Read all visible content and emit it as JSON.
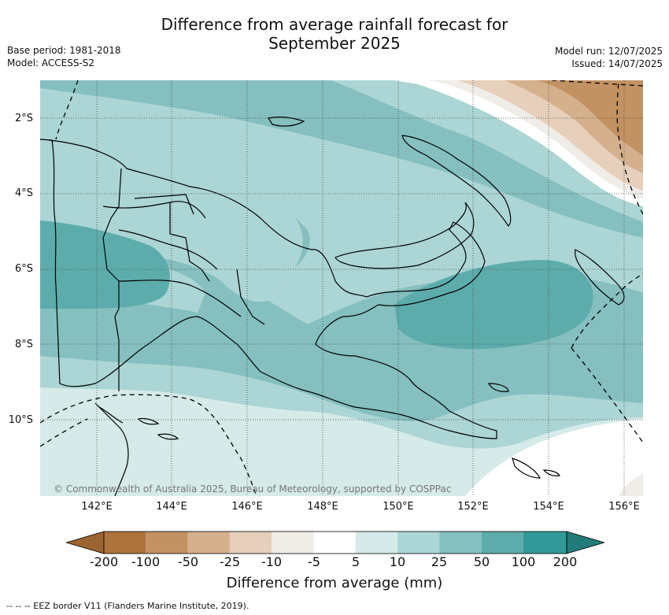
{
  "title_line1": "Difference from average rainfall forecast for",
  "title_line2": "September 2025",
  "meta": {
    "base_period": "Base period: 1981-2018",
    "model": "Model: ACCESS-S2",
    "model_run": "Model run: 12/07/2025",
    "issued": "Issued: 14/07/2025"
  },
  "map": {
    "lat_labels": [
      "2°S",
      "4°S",
      "6°S",
      "8°S",
      "10°S"
    ],
    "lon_labels": [
      "142°E",
      "144°E",
      "146°E",
      "148°E",
      "150°E",
      "152°E",
      "154°E",
      "156°E"
    ],
    "copyright": "© Commonwealth of Australia 2025, Bureau of Meteorology, supported by COSPPac",
    "border_color": "#000000",
    "eez_style": "dashed"
  },
  "colorbar": {
    "label": "Difference from average (mm)",
    "ticks": [
      "-200",
      "-100",
      "-50",
      "-25",
      "-10",
      "-5",
      "5",
      "10",
      "25",
      "50",
      "100",
      "200"
    ],
    "colors": {
      "under": "#9c6431",
      "b1": "#ad733d",
      "b2": "#c29263",
      "b3": "#d5b08d",
      "b4": "#e6cfbb",
      "b5": "#f0ede8",
      "b6": "#ffffff",
      "b7": "#d5eae9",
      "b8": "#acd5d5",
      "b9": "#85bfbf",
      "b10": "#5dacac",
      "b11": "#319a98",
      "over": "#227b79"
    }
  },
  "footnote": "-- --  -- EEZ border V11 (Flanders Marine Institute, 2019)."
}
